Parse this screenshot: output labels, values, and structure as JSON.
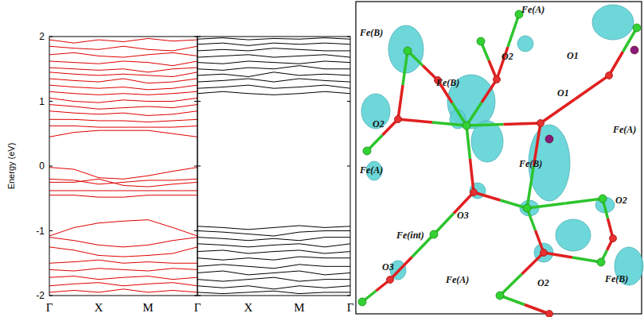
{
  "chart_data": [
    {
      "type": "line",
      "ylabel": "Energy (eV)",
      "color": "#e00000",
      "categories": [
        "Γ",
        null,
        "X",
        null,
        "M",
        null,
        "Γ"
      ],
      "ylim": [
        -2,
        2
      ],
      "yticks": [
        -2,
        -1,
        0,
        1,
        2
      ],
      "series": [
        {
          "values": [
            1.95,
            1.9,
            1.95,
            1.92,
            1.97,
            1.93,
            1.95
          ]
        },
        {
          "values": [
            1.85,
            1.82,
            1.8,
            1.85,
            1.8,
            1.78,
            1.85
          ]
        },
        {
          "values": [
            1.72,
            1.75,
            1.7,
            1.68,
            1.72,
            1.75,
            1.7
          ]
        },
        {
          "values": [
            1.62,
            1.6,
            1.58,
            1.62,
            1.6,
            1.55,
            1.62
          ]
        },
        {
          "values": [
            1.52,
            1.5,
            1.48,
            1.5,
            1.45,
            1.5,
            1.52
          ]
        },
        {
          "values": [
            1.45,
            1.42,
            1.4,
            1.42,
            1.4,
            1.38,
            1.45
          ]
        },
        {
          "values": [
            1.35,
            1.32,
            1.3,
            1.35,
            1.28,
            1.3,
            1.35
          ]
        },
        {
          "values": [
            1.25,
            1.22,
            1.2,
            1.22,
            1.18,
            1.2,
            1.25
          ]
        },
        {
          "values": [
            1.15,
            1.12,
            1.1,
            1.12,
            1.1,
            1.12,
            1.15
          ]
        },
        {
          "values": [
            1.05,
            1.0,
            0.98,
            1.02,
            1.0,
            1.0,
            1.05
          ]
        },
        {
          "values": [
            0.95,
            0.92,
            0.88,
            0.9,
            0.92,
            0.9,
            0.95
          ]
        },
        {
          "values": [
            0.85,
            0.82,
            0.8,
            0.82,
            0.78,
            0.8,
            0.85
          ]
        },
        {
          "values": [
            0.72,
            0.72,
            0.7,
            0.7,
            0.68,
            0.7,
            0.72
          ]
        },
        {
          "values": [
            0.62,
            0.62,
            0.6,
            0.6,
            0.6,
            0.6,
            0.62
          ]
        },
        {
          "values": [
            0.45,
            0.52,
            0.55,
            0.55,
            0.55,
            0.5,
            0.45
          ]
        },
        {
          "values": [
            -0.02,
            -0.05,
            -0.18,
            -0.2,
            -0.15,
            -0.08,
            -0.02
          ]
        },
        {
          "values": [
            -0.2,
            -0.22,
            -0.28,
            -0.25,
            -0.22,
            -0.22,
            -0.2
          ]
        },
        {
          "values": [
            -0.25,
            -0.25,
            -0.2,
            -0.3,
            -0.32,
            -0.28,
            -0.25
          ]
        },
        {
          "values": [
            -0.38,
            -0.38,
            -0.38,
            -0.38,
            -0.38,
            -0.38,
            -0.38
          ]
        },
        {
          "values": [
            -0.45,
            -0.45,
            -0.48,
            -0.48,
            -0.45,
            -0.45,
            -0.45
          ]
        },
        {
          "values": [
            -1.08,
            -0.95,
            -0.88,
            -0.85,
            -0.83,
            -0.95,
            -1.08
          ]
        },
        {
          "values": [
            -1.1,
            -1.15,
            -1.22,
            -1.25,
            -1.22,
            -1.15,
            -1.1
          ]
        },
        {
          "values": [
            -1.25,
            -1.3,
            -1.38,
            -1.4,
            -1.38,
            -1.35,
            -1.25
          ]
        },
        {
          "values": [
            -1.5,
            -1.48,
            -1.45,
            -1.5,
            -1.48,
            -1.5,
            -1.5
          ]
        },
        {
          "values": [
            -1.6,
            -1.62,
            -1.58,
            -1.6,
            -1.62,
            -1.58,
            -1.6
          ]
        },
        {
          "values": [
            -1.72,
            -1.7,
            -1.75,
            -1.72,
            -1.7,
            -1.75,
            -1.72
          ]
        },
        {
          "values": [
            -1.85,
            -1.82,
            -1.8,
            -1.85,
            -1.82,
            -1.8,
            -1.85
          ]
        },
        {
          "values": [
            -1.95,
            -1.92,
            -1.95,
            -1.9,
            -1.95,
            -1.92,
            -1.95
          ]
        }
      ]
    },
    {
      "type": "line",
      "color": "#000000",
      "tick_labels": "x",
      "categories": [
        null,
        null,
        "X",
        null,
        "M",
        null,
        "Γ"
      ],
      "ylim": [
        -2,
        2
      ],
      "yticks": [
        -2,
        -1,
        0,
        1,
        2
      ],
      "series": [
        {
          "values": [
            1.12,
            1.15,
            1.12,
            1.1,
            1.12,
            1.15,
            1.12
          ]
        },
        {
          "values": [
            1.2,
            1.22,
            1.25,
            1.2,
            1.22,
            1.25,
            1.2
          ]
        },
        {
          "values": [
            1.3,
            1.32,
            1.35,
            1.3,
            1.35,
            1.32,
            1.3
          ]
        },
        {
          "values": [
            1.4,
            1.42,
            1.38,
            1.45,
            1.4,
            1.42,
            1.4
          ]
        },
        {
          "values": [
            1.5,
            1.48,
            1.52,
            1.5,
            1.55,
            1.5,
            1.5
          ]
        },
        {
          "values": [
            1.6,
            1.58,
            1.62,
            1.6,
            1.58,
            1.62,
            1.6
          ]
        },
        {
          "values": [
            1.68,
            1.7,
            1.72,
            1.68,
            1.7,
            1.72,
            1.68
          ]
        },
        {
          "values": [
            1.78,
            1.8,
            1.78,
            1.82,
            1.8,
            1.78,
            1.78
          ]
        },
        {
          "values": [
            1.88,
            1.9,
            1.86,
            1.9,
            1.88,
            1.9,
            1.88
          ]
        },
        {
          "values": [
            1.96,
            1.98,
            1.95,
            1.97,
            1.96,
            1.98,
            1.96
          ]
        },
        {
          "values": [
            -0.93,
            -0.95,
            -0.98,
            -0.95,
            -0.92,
            -0.95,
            -0.93
          ]
        },
        {
          "values": [
            -1.0,
            -1.02,
            -1.05,
            -1.08,
            -1.02,
            -1.0,
            -1.0
          ]
        },
        {
          "values": [
            -1.1,
            -1.12,
            -1.15,
            -1.12,
            -1.15,
            -1.1,
            -1.1
          ]
        },
        {
          "values": [
            -1.2,
            -1.22,
            -1.25,
            -1.22,
            -1.2,
            -1.25,
            -1.2
          ]
        },
        {
          "values": [
            -1.32,
            -1.3,
            -1.35,
            -1.32,
            -1.3,
            -1.35,
            -1.32
          ]
        },
        {
          "values": [
            -1.42,
            -1.45,
            -1.42,
            -1.45,
            -1.4,
            -1.42,
            -1.42
          ]
        },
        {
          "values": [
            -1.55,
            -1.52,
            -1.55,
            -1.58,
            -1.52,
            -1.55,
            -1.55
          ]
        },
        {
          "values": [
            -1.65,
            -1.62,
            -1.68,
            -1.65,
            -1.62,
            -1.68,
            -1.65
          ]
        },
        {
          "values": [
            -1.75,
            -1.78,
            -1.75,
            -1.72,
            -1.78,
            -1.75,
            -1.75
          ]
        },
        {
          "values": [
            -1.85,
            -1.88,
            -1.85,
            -1.9,
            -1.85,
            -1.88,
            -1.85
          ]
        },
        {
          "values": [
            -1.95,
            -1.97,
            -1.95,
            -1.93,
            -1.97,
            -1.95,
            -1.95
          ]
        }
      ]
    }
  ],
  "diagram": {
    "labels": [
      "Fe(B)",
      "Fe(A)",
      "O2",
      "O1",
      "Fe(B)",
      "O1",
      "Fe(A)",
      "O2",
      "Fe(A)",
      "Fe(B)",
      "O2",
      "O3",
      "Fe(int)",
      "O3",
      "Fe(A)",
      "O2",
      "Fe(B)"
    ]
  }
}
